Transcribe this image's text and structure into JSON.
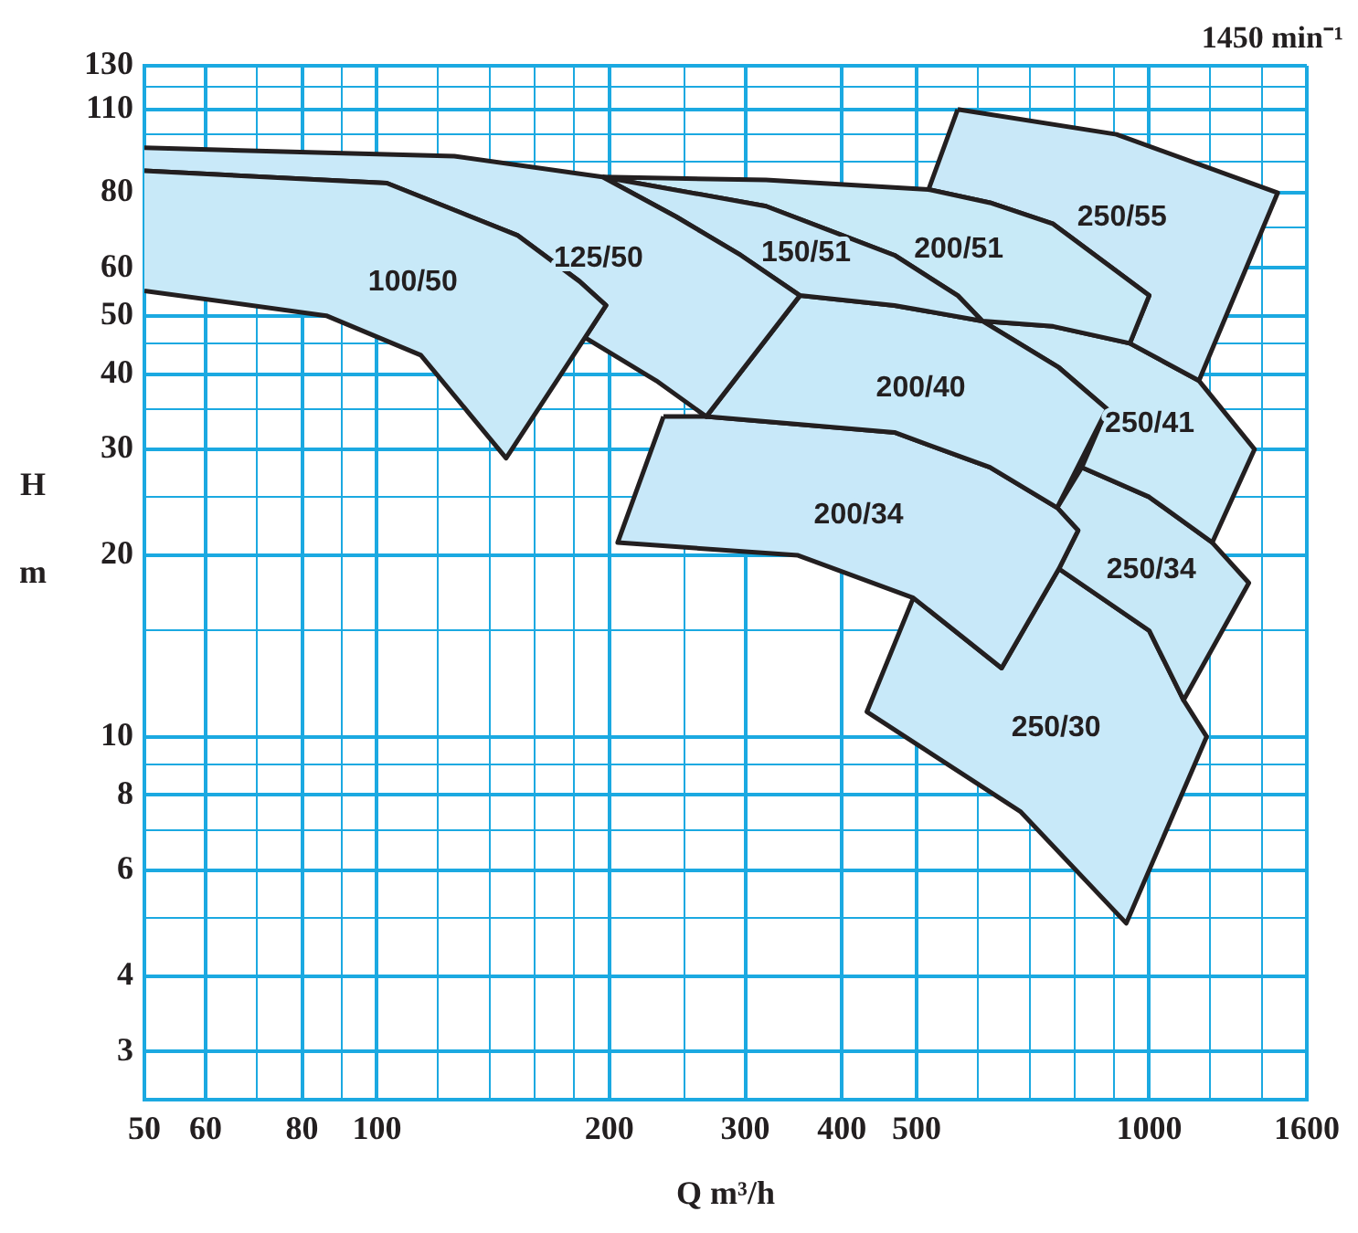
{
  "chart_data": {
    "type": "area",
    "xlabel": "Q m³/h",
    "ylabel": "H m",
    "log": "xy",
    "grid": true,
    "legend": false,
    "xlim": [
      50,
      1600
    ],
    "ylim": [
      2.5,
      130
    ],
    "xticks": [
      50,
      60,
      {
        "value": 70,
        "label": null
      },
      80,
      {
        "value": 90,
        "label": null
      },
      100,
      {
        "value": 120,
        "label": null
      },
      {
        "value": 140,
        "label": null
      },
      {
        "value": 160,
        "label": null
      },
      {
        "value": 180,
        "label": null
      },
      200,
      {
        "value": 250,
        "label": null
      },
      300,
      400,
      500,
      {
        "value": 600,
        "label": null
      },
      {
        "value": 700,
        "label": null
      },
      {
        "value": 800,
        "label": null
      },
      {
        "value": 900,
        "label": null
      },
      1000,
      {
        "value": 1200,
        "label": null
      },
      {
        "value": 1400,
        "label": null
      },
      1600
    ],
    "yticks": [
      3,
      4,
      {
        "value": 5,
        "label": null
      },
      6,
      {
        "value": 7,
        "label": null
      },
      8,
      {
        "value": 9,
        "label": null
      },
      10,
      {
        "value": 15,
        "label": null
      },
      20,
      {
        "value": 25,
        "label": null
      },
      30,
      {
        "value": 35,
        "label": null
      },
      40,
      {
        "value": 45,
        "label": null
      },
      50,
      60,
      {
        "value": 70,
        "label": null
      },
      80,
      {
        "value": 90,
        "label": null
      },
      {
        "value": 100,
        "label": null
      },
      110,
      {
        "value": 120,
        "label": null
      },
      130
    ],
    "series": [
      {
        "name": "100/50",
        "color": "#c8e9f8",
        "x": [
          50,
          103,
          152,
          183,
          198,
          186,
          147,
          114,
          86,
          50
        ],
        "values": [
          87,
          83,
          68,
          57,
          52,
          46,
          29,
          43,
          50,
          55
        ]
      },
      {
        "name": "125/50",
        "color": "#c9e9f9",
        "x": [
          50,
          126,
          196,
          244,
          296,
          353,
          267,
          230,
          186,
          198,
          183,
          152,
          103,
          50
        ],
        "values": [
          95,
          92,
          85,
          73,
          63,
          54,
          34,
          39,
          46,
          52,
          57,
          68,
          83,
          87
        ]
      },
      {
        "name": "150/51",
        "color": "#c7e8f8",
        "x": [
          196,
          244,
          296,
          353,
          468,
          608,
          565,
          468,
          319,
          196
        ],
        "values": [
          85,
          73,
          63,
          54,
          52,
          49,
          54,
          63,
          76,
          85
        ]
      },
      {
        "name": "200/51",
        "color": "#c8eaf7",
        "x": [
          196,
          319,
          518,
          622,
          751,
          1000,
          944,
          751,
          608,
          565,
          468,
          319,
          196
        ],
        "values": [
          85,
          84,
          81,
          77,
          71,
          54,
          45,
          48,
          49,
          54,
          63,
          76,
          85
        ]
      },
      {
        "name": "250/55",
        "color": "#c9e8f8",
        "x": [
          565,
          907,
          1467,
          1160,
          944,
          1000,
          751,
          622,
          518,
          565
        ],
        "values": [
          110,
          100,
          80,
          39,
          45,
          54,
          71,
          77,
          81,
          110
        ]
      },
      {
        "name": "200/40",
        "color": "#c7e9f9",
        "x": [
          353,
          468,
          608,
          764,
          882,
          760,
          622,
          468,
          267,
          353
        ],
        "values": [
          54,
          52,
          49,
          41,
          35,
          24,
          28,
          32,
          34,
          54
        ]
      },
      {
        "name": "200/34",
        "color": "#c8e8f9",
        "x": [
          235,
          267,
          468,
          622,
          760,
          809,
          764,
          644,
          495,
          351,
          205,
          235
        ],
        "values": [
          34,
          34,
          32,
          28,
          24,
          22,
          19,
          13,
          17,
          20,
          21,
          34
        ]
      },
      {
        "name": "250/41",
        "color": "#c9eaf8",
        "x": [
          608,
          751,
          944,
          1160,
          1369,
          1207,
          1000,
          818,
          882,
          764,
          608
        ],
        "values": [
          49,
          48,
          45,
          39,
          30,
          21,
          25,
          28,
          35,
          41,
          49
        ]
      },
      {
        "name": "250/34",
        "color": "#c7e8f7",
        "x": [
          818,
          1000,
          1207,
          1346,
          1108,
          1000,
          764,
          809,
          760,
          818
        ],
        "values": [
          28,
          25,
          21,
          18,
          11.5,
          15,
          19,
          22,
          24,
          28
        ]
      },
      {
        "name": "250/30",
        "color": "#c8e9f9",
        "x": [
          764,
          1000,
          1108,
          1187,
          934,
          682,
          431,
          495,
          644,
          764
        ],
        "values": [
          19,
          15,
          11.5,
          10,
          4.9,
          7.5,
          11,
          17,
          13,
          19
        ]
      }
    ],
    "annotations": [
      "1450 min⁻¹"
    ]
  }
}
